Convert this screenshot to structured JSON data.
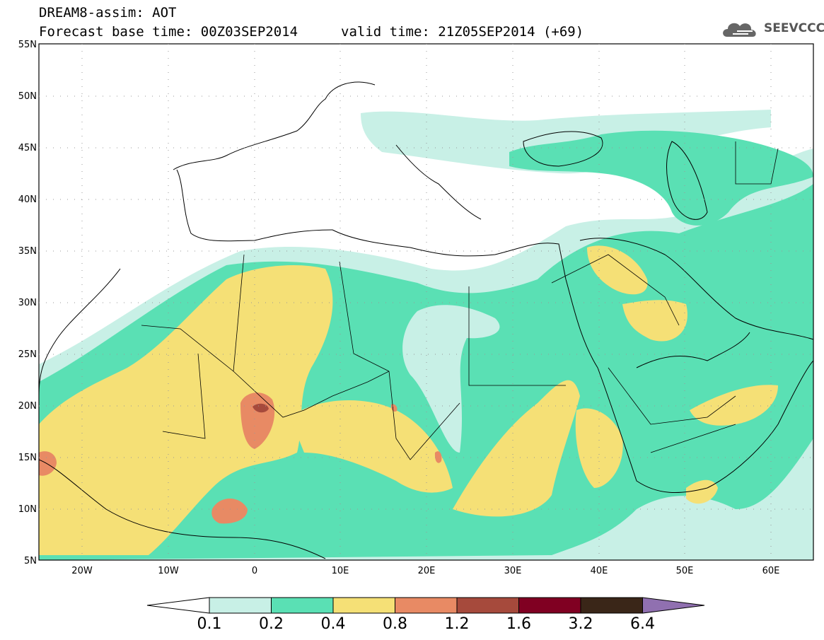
{
  "header": {
    "line1": "DREAM8-assim: AOT",
    "line2": "Forecast base time: 00Z03SEP2014",
    "line3": "valid time: 21Z05SEP2014 (+69)"
  },
  "logo": {
    "text": "SEEVCCC",
    "icon": "cloud-icon"
  },
  "map": {
    "lat_labels": [
      "55N",
      "50N",
      "45N",
      "40N",
      "35N",
      "30N",
      "25N",
      "20N",
      "15N",
      "10N",
      "5N"
    ],
    "lon_labels": [
      "20W",
      "10W",
      "0",
      "10E",
      "20E",
      "30E",
      "40E",
      "50E",
      "60E"
    ],
    "colors": {
      "c01": "#c8f0e6",
      "c02": "#5ae0b4",
      "c04": "#f5e076",
      "c08": "#e88a64",
      "c12": "#a64a3c",
      "c16": "#800022",
      "c32": "#3a2618",
      "c64": "#9070b0"
    }
  },
  "colorbar": {
    "labels": [
      "0.1",
      "0.2",
      "0.4",
      "0.8",
      "1.2",
      "1.6",
      "3.2",
      "6.4"
    ]
  }
}
